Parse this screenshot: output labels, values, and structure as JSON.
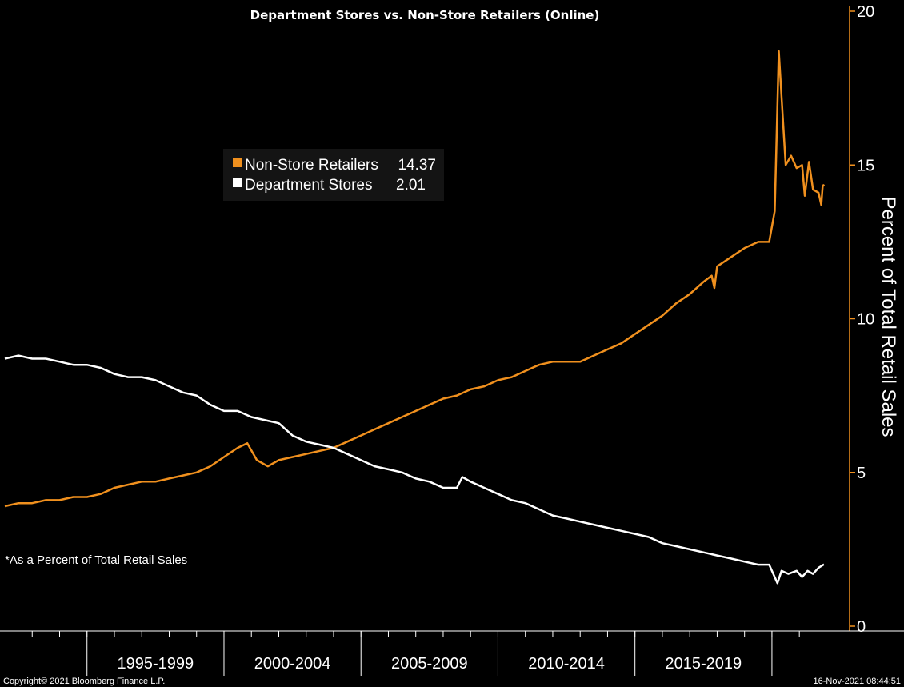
{
  "chart_data": {
    "type": "line",
    "title": "Department Stores vs. Non-Store Retailers (Online)",
    "ylabel": "Percent of Total Retail Sales",
    "ylim": [
      0,
      20
    ],
    "yticks": [
      0,
      5,
      10,
      15,
      20
    ],
    "x_period_labels": [
      "1995-1999",
      "2000-2004",
      "2005-2009",
      "2010-2014",
      "2015-2019"
    ],
    "x_range": [
      1992.0,
      2021.9
    ],
    "legend": {
      "position": "upper-center",
      "entries": [
        {
          "name": "Non-Store Retailers",
          "value": "14.37"
        },
        {
          "name": "Department Stores",
          "value": "2.01"
        }
      ]
    },
    "note": "*As a Percent of Total Retail Sales",
    "series": [
      {
        "name": "Non-Store Retailers",
        "color": "#f0901e",
        "points": [
          [
            1992.0,
            3.9
          ],
          [
            1992.5,
            4.0
          ],
          [
            1993.0,
            4.0
          ],
          [
            1993.5,
            4.1
          ],
          [
            1994.0,
            4.1
          ],
          [
            1994.5,
            4.2
          ],
          [
            1995.0,
            4.2
          ],
          [
            1995.5,
            4.3
          ],
          [
            1996.0,
            4.5
          ],
          [
            1996.5,
            4.6
          ],
          [
            1997.0,
            4.7
          ],
          [
            1997.5,
            4.7
          ],
          [
            1998.0,
            4.8
          ],
          [
            1998.5,
            4.9
          ],
          [
            1999.0,
            5.0
          ],
          [
            1999.5,
            5.2
          ],
          [
            2000.0,
            5.5
          ],
          [
            2000.5,
            5.8
          ],
          [
            2000.85,
            5.95
          ],
          [
            2001.2,
            5.4
          ],
          [
            2001.6,
            5.2
          ],
          [
            2002.0,
            5.4
          ],
          [
            2002.5,
            5.5
          ],
          [
            2003.0,
            5.6
          ],
          [
            2003.5,
            5.7
          ],
          [
            2004.0,
            5.8
          ],
          [
            2004.5,
            6.0
          ],
          [
            2005.0,
            6.2
          ],
          [
            2005.5,
            6.4
          ],
          [
            2006.0,
            6.6
          ],
          [
            2006.5,
            6.8
          ],
          [
            2007.0,
            7.0
          ],
          [
            2007.5,
            7.2
          ],
          [
            2008.0,
            7.4
          ],
          [
            2008.5,
            7.5
          ],
          [
            2009.0,
            7.7
          ],
          [
            2009.5,
            7.8
          ],
          [
            2010.0,
            8.0
          ],
          [
            2010.5,
            8.1
          ],
          [
            2011.0,
            8.3
          ],
          [
            2011.5,
            8.5
          ],
          [
            2012.0,
            8.6
          ],
          [
            2012.5,
            8.6
          ],
          [
            2013.0,
            8.6
          ],
          [
            2013.5,
            8.8
          ],
          [
            2014.0,
            9.0
          ],
          [
            2014.5,
            9.2
          ],
          [
            2015.0,
            9.5
          ],
          [
            2015.5,
            9.8
          ],
          [
            2016.0,
            10.1
          ],
          [
            2016.5,
            10.5
          ],
          [
            2017.0,
            10.8
          ],
          [
            2017.5,
            11.2
          ],
          [
            2017.8,
            11.4
          ],
          [
            2017.9,
            11.0
          ],
          [
            2018.0,
            11.7
          ],
          [
            2018.5,
            12.0
          ],
          [
            2019.0,
            12.3
          ],
          [
            2019.5,
            12.5
          ],
          [
            2019.9,
            12.5
          ],
          [
            2020.1,
            13.5
          ],
          [
            2020.25,
            18.7
          ],
          [
            2020.4,
            16.5
          ],
          [
            2020.5,
            15.0
          ],
          [
            2020.7,
            15.3
          ],
          [
            2020.9,
            14.9
          ],
          [
            2021.1,
            15.0
          ],
          [
            2021.2,
            14.0
          ],
          [
            2021.35,
            15.1
          ],
          [
            2021.5,
            14.2
          ],
          [
            2021.7,
            14.1
          ],
          [
            2021.8,
            13.7
          ],
          [
            2021.85,
            14.3
          ],
          [
            2021.9,
            14.37
          ]
        ]
      },
      {
        "name": "Department Stores",
        "color": "#ffffff",
        "points": [
          [
            1992.0,
            8.7
          ],
          [
            1992.5,
            8.8
          ],
          [
            1993.0,
            8.7
          ],
          [
            1993.5,
            8.7
          ],
          [
            1994.0,
            8.6
          ],
          [
            1994.5,
            8.5
          ],
          [
            1995.0,
            8.5
          ],
          [
            1995.5,
            8.4
          ],
          [
            1996.0,
            8.2
          ],
          [
            1996.5,
            8.1
          ],
          [
            1997.0,
            8.1
          ],
          [
            1997.5,
            8.0
          ],
          [
            1998.0,
            7.8
          ],
          [
            1998.5,
            7.6
          ],
          [
            1999.0,
            7.5
          ],
          [
            1999.5,
            7.2
          ],
          [
            2000.0,
            7.0
          ],
          [
            2000.5,
            7.0
          ],
          [
            2001.0,
            6.8
          ],
          [
            2001.5,
            6.7
          ],
          [
            2002.0,
            6.6
          ],
          [
            2002.5,
            6.2
          ],
          [
            2003.0,
            6.0
          ],
          [
            2003.5,
            5.9
          ],
          [
            2004.0,
            5.8
          ],
          [
            2004.5,
            5.6
          ],
          [
            2005.0,
            5.4
          ],
          [
            2005.5,
            5.2
          ],
          [
            2006.0,
            5.1
          ],
          [
            2006.5,
            5.0
          ],
          [
            2007.0,
            4.8
          ],
          [
            2007.5,
            4.7
          ],
          [
            2008.0,
            4.5
          ],
          [
            2008.5,
            4.5
          ],
          [
            2008.7,
            4.85
          ],
          [
            2009.0,
            4.7
          ],
          [
            2009.5,
            4.5
          ],
          [
            2010.0,
            4.3
          ],
          [
            2010.5,
            4.1
          ],
          [
            2011.0,
            4.0
          ],
          [
            2011.5,
            3.8
          ],
          [
            2012.0,
            3.6
          ],
          [
            2012.5,
            3.5
          ],
          [
            2013.0,
            3.4
          ],
          [
            2013.5,
            3.3
          ],
          [
            2014.0,
            3.2
          ],
          [
            2014.5,
            3.1
          ],
          [
            2015.0,
            3.0
          ],
          [
            2015.5,
            2.9
          ],
          [
            2016.0,
            2.7
          ],
          [
            2016.5,
            2.6
          ],
          [
            2017.0,
            2.5
          ],
          [
            2017.5,
            2.4
          ],
          [
            2018.0,
            2.3
          ],
          [
            2018.5,
            2.2
          ],
          [
            2019.0,
            2.1
          ],
          [
            2019.5,
            2.0
          ],
          [
            2019.9,
            2.0
          ],
          [
            2020.2,
            1.4
          ],
          [
            2020.35,
            1.8
          ],
          [
            2020.6,
            1.7
          ],
          [
            2020.9,
            1.8
          ],
          [
            2021.1,
            1.6
          ],
          [
            2021.3,
            1.8
          ],
          [
            2021.5,
            1.7
          ],
          [
            2021.7,
            1.9
          ],
          [
            2021.9,
            2.01
          ]
        ]
      }
    ]
  },
  "footer": {
    "copyright": "Copyright© 2021 Bloomberg Finance L.P.",
    "timestamp": "16-Nov-2021 08:44:51"
  }
}
